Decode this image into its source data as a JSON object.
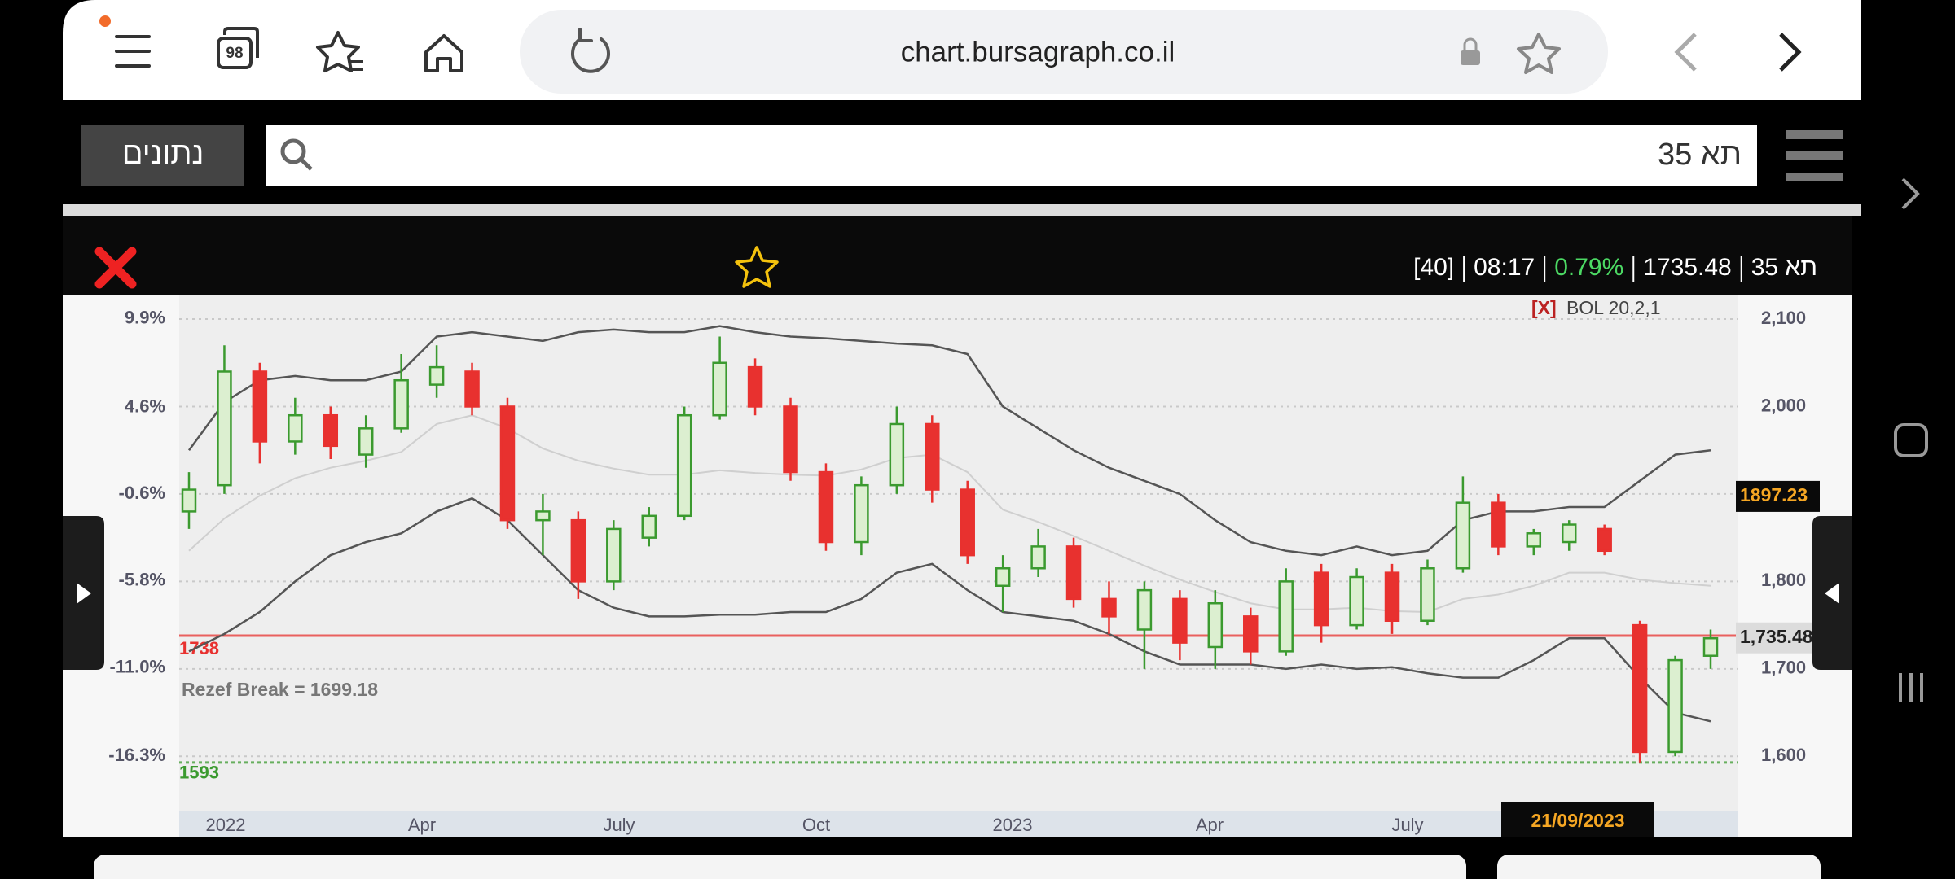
{
  "browser": {
    "tab_count": "98",
    "url": "chart.bursagraph.co.il"
  },
  "search": {
    "button": "נתונים",
    "query": "תא 35"
  },
  "quote": {
    "name": "תא 35",
    "price": "1735.48",
    "change": "0.79%",
    "time": "08:17",
    "count": "[40]"
  },
  "chart_data": {
    "type": "candlestick",
    "indicator_close": "[X]",
    "indicator": "BOL 20,2,1",
    "x_labels": [
      "2022",
      "Apr",
      "July",
      "Oct",
      "2023",
      "Apr",
      "July"
    ],
    "ohlc": [
      [
        1880,
        1925,
        1860,
        1905
      ],
      [
        1910,
        2070,
        1900,
        2040
      ],
      [
        2040,
        2050,
        1935,
        1960
      ],
      [
        1960,
        2010,
        1945,
        1990
      ],
      [
        1990,
        2000,
        1940,
        1955
      ],
      [
        1945,
        1990,
        1930,
        1975
      ],
      [
        1975,
        2060,
        1970,
        2030
      ],
      [
        2025,
        2070,
        2010,
        2045
      ],
      [
        2040,
        2050,
        1990,
        2000
      ],
      [
        2000,
        2010,
        1860,
        1870
      ],
      [
        1870,
        1900,
        1830,
        1880
      ],
      [
        1870,
        1880,
        1780,
        1800
      ],
      [
        1800,
        1870,
        1790,
        1860
      ],
      [
        1850,
        1885,
        1840,
        1875
      ],
      [
        1875,
        2000,
        1870,
        1990
      ],
      [
        1990,
        2080,
        1985,
        2050
      ],
      [
        2045,
        2055,
        1990,
        2000
      ],
      [
        2000,
        2010,
        1915,
        1925
      ],
      [
        1925,
        1935,
        1835,
        1845
      ],
      [
        1845,
        1920,
        1830,
        1910
      ],
      [
        1910,
        2000,
        1900,
        1980
      ],
      [
        1980,
        1990,
        1890,
        1905
      ],
      [
        1905,
        1915,
        1820,
        1830
      ],
      [
        1795,
        1830,
        1765,
        1815
      ],
      [
        1815,
        1860,
        1805,
        1840
      ],
      [
        1840,
        1850,
        1770,
        1780
      ],
      [
        1780,
        1800,
        1740,
        1760
      ],
      [
        1745,
        1800,
        1700,
        1790
      ],
      [
        1780,
        1790,
        1710,
        1730
      ],
      [
        1725,
        1790,
        1700,
        1775
      ],
      [
        1760,
        1770,
        1705,
        1720
      ],
      [
        1720,
        1815,
        1715,
        1800
      ],
      [
        1810,
        1820,
        1730,
        1750
      ],
      [
        1750,
        1815,
        1745,
        1805
      ],
      [
        1810,
        1820,
        1740,
        1755
      ],
      [
        1755,
        1825,
        1750,
        1815
      ],
      [
        1815,
        1920,
        1810,
        1890
      ],
      [
        1890,
        1900,
        1830,
        1840
      ],
      [
        1840,
        1860,
        1830,
        1855
      ],
      [
        1845,
        1870,
        1835,
        1865
      ],
      [
        1860,
        1865,
        1830,
        1835
      ],
      [
        1750,
        1755,
        1593,
        1605
      ],
      [
        1605,
        1715,
        1600,
        1710
      ],
      [
        1715,
        1745,
        1700,
        1735
      ]
    ],
    "colors": {
      "up": "#3b9a2f",
      "up_fill": "#dcefd0",
      "down": "#e8312f"
    },
    "bands": {
      "color": "#555555",
      "middle_color": "#cfcfcf",
      "upper": [
        1950,
        2005,
        2030,
        2035,
        2030,
        2030,
        2040,
        2080,
        2085,
        2080,
        2075,
        2085,
        2088,
        2085,
        2085,
        2092,
        2085,
        2080,
        2078,
        2075,
        2072,
        2070,
        2060,
        2000,
        1975,
        1950,
        1930,
        1915,
        1900,
        1870,
        1845,
        1835,
        1830,
        1840,
        1830,
        1835,
        1870,
        1880,
        1880,
        1885,
        1885,
        1915,
        1945,
        1950
      ],
      "middle": [
        1835,
        1872,
        1898,
        1918,
        1930,
        1938,
        1948,
        1980,
        1990,
        1975,
        1952,
        1938,
        1929,
        1922,
        1922,
        1927,
        1924,
        1922,
        1921,
        1928,
        1941,
        1945,
        1925,
        1882,
        1868,
        1852,
        1835,
        1818,
        1802,
        1788,
        1775,
        1768,
        1768,
        1770,
        1766,
        1765,
        1780,
        1785,
        1795,
        1810,
        1810,
        1802,
        1798,
        1795
      ],
      "lower": [
        1720,
        1740,
        1765,
        1800,
        1830,
        1845,
        1855,
        1880,
        1895,
        1870,
        1830,
        1790,
        1770,
        1760,
        1760,
        1762,
        1762,
        1765,
        1765,
        1780,
        1810,
        1820,
        1790,
        1765,
        1760,
        1755,
        1740,
        1720,
        1705,
        1705,
        1705,
        1700,
        1705,
        1700,
        1702,
        1695,
        1690,
        1690,
        1710,
        1735,
        1735,
        1690,
        1650,
        1640
      ]
    },
    "ylim": [
      1537,
      2127
    ],
    "yticks": [
      {
        "value": 2100,
        "label": "2,100"
      },
      {
        "value": 2000,
        "label": "2,000"
      },
      {
        "value": 1900,
        "label": "1,900"
      },
      {
        "value": 1800,
        "label": "1,800"
      },
      {
        "value": 1700,
        "label": "1,700"
      },
      {
        "value": 1600,
        "label": "1,600"
      }
    ],
    "y2lim": [
      -19.6,
      11.3
    ],
    "y2ticks": [
      {
        "value": 9.9,
        "label": "9.9%"
      },
      {
        "value": 4.6,
        "label": "4.6%"
      },
      {
        "value": -0.6,
        "label": "-0.6%"
      },
      {
        "value": -5.8,
        "label": "-5.8%"
      },
      {
        "value": -11.0,
        "label": "-11.0%"
      },
      {
        "value": -16.3,
        "label": "-16.3%"
      }
    ],
    "grid": true,
    "hlines": [
      {
        "value": 1738,
        "label": "1738",
        "color": "#e8312f"
      },
      {
        "value": 1593,
        "label": "1593",
        "color": "#3b9a2f"
      }
    ],
    "annotation": "Rezef Break = 1699.18",
    "price_tags": [
      {
        "value": 1897.23,
        "label": "1897.23"
      },
      {
        "value": 1735.48,
        "label": "1,735.48"
      }
    ],
    "cursor_date": "21/09/2023"
  }
}
